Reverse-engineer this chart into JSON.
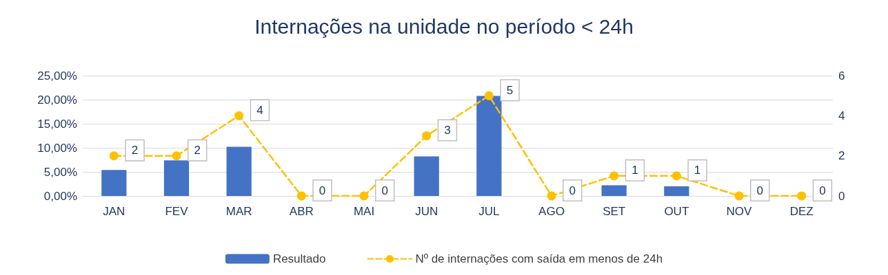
{
  "chart_data": {
    "type": "bar",
    "title": "Internações na unidade no período < 24h",
    "categories": [
      "JAN",
      "FEV",
      "MAR",
      "ABR",
      "MAI",
      "JUN",
      "JUL",
      "AGO",
      "SET",
      "OUT",
      "NOV",
      "DEZ"
    ],
    "series": [
      {
        "name": "Resultado",
        "color": "#4472c4",
        "values": [
          5.4,
          7.4,
          10.2,
          0,
          0,
          8.2,
          20.8,
          0,
          2.2,
          2.0,
          0,
          0
        ]
      },
      {
        "name": "Nº de internações com saída em menos de 24h",
        "type": "line",
        "axis": "y2",
        "color": "#ffc000",
        "marker": "circle",
        "line_style": "dashed",
        "values": [
          2,
          2,
          4,
          0,
          0,
          3,
          5,
          0,
          1,
          1,
          0,
          0
        ],
        "value_labels": [
          "2",
          "2",
          "4",
          "0",
          "0",
          "3",
          "5",
          "0",
          "1",
          "1",
          "0",
          "0"
        ]
      }
    ],
    "ylim": [
      0,
      25
    ],
    "yticks": [
      {
        "value": 0,
        "label": "0,00%"
      },
      {
        "value": 5,
        "label": "5,00%"
      },
      {
        "value": 10,
        "label": "10,00%"
      },
      {
        "value": 15,
        "label": "15,00%"
      },
      {
        "value": 20,
        "label": "20,00%"
      },
      {
        "value": 25,
        "label": "25,00%"
      }
    ],
    "y2lim": [
      0,
      6
    ],
    "y2ticks": [
      0,
      2,
      4,
      6
    ],
    "grid": "y",
    "legend": "bottom"
  }
}
